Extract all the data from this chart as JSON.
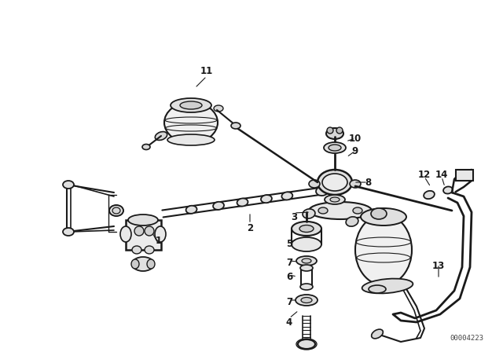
{
  "bg_color": "#ffffff",
  "line_color": "#1a1a1a",
  "fig_width": 6.4,
  "fig_height": 4.48,
  "dpi": 100,
  "watermark": "00004223"
}
